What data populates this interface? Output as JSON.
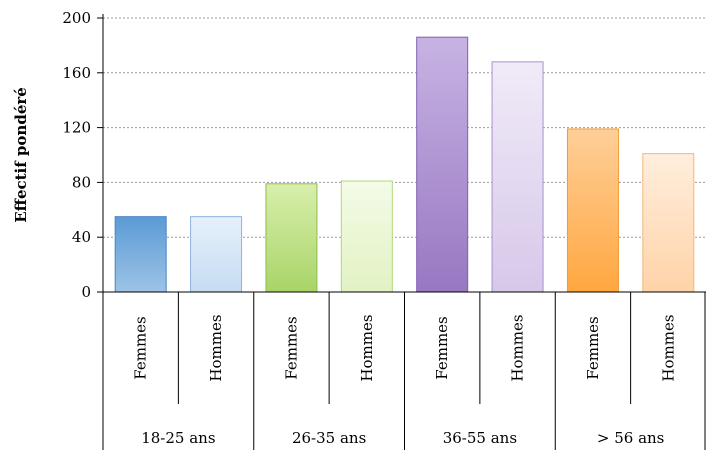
{
  "chart_data": {
    "type": "bar",
    "ylabel": "Effectif pondéré",
    "ylim": [
      0,
      200
    ],
    "yticks": [
      0,
      40,
      80,
      120,
      160,
      200
    ],
    "grid": true,
    "groups": [
      "18-25 ans",
      "26-35 ans",
      "36-55 ans",
      "> 56 ans"
    ],
    "categories": [
      "Femmes",
      "Hommes",
      "Femmes",
      "Hommes",
      "Femmes",
      "Hommes",
      "Femmes",
      "Hommes"
    ],
    "values": [
      55,
      55,
      79,
      81,
      186,
      168,
      119,
      101
    ],
    "bar_colors": [
      [
        "#5b9bd5",
        "#9dc3e6",
        "#4a86c5"
      ],
      [
        "#e6f0fb",
        "#c6dcf3",
        "#8eb4e0"
      ],
      [
        "#d8efac",
        "#a9d468",
        "#8cbf4a"
      ],
      [
        "#f4fbe7",
        "#e2f2c4",
        "#b0d77a"
      ],
      [
        "#c7b3e3",
        "#9877c2",
        "#8061b1"
      ],
      [
        "#f1ebf8",
        "#d6c8ea",
        "#a992cc"
      ],
      [
        "#ffcf99",
        "#ffa740",
        "#f29a35"
      ],
      [
        "#ffeedd",
        "#ffd3a8",
        "#f5b57a"
      ]
    ]
  }
}
